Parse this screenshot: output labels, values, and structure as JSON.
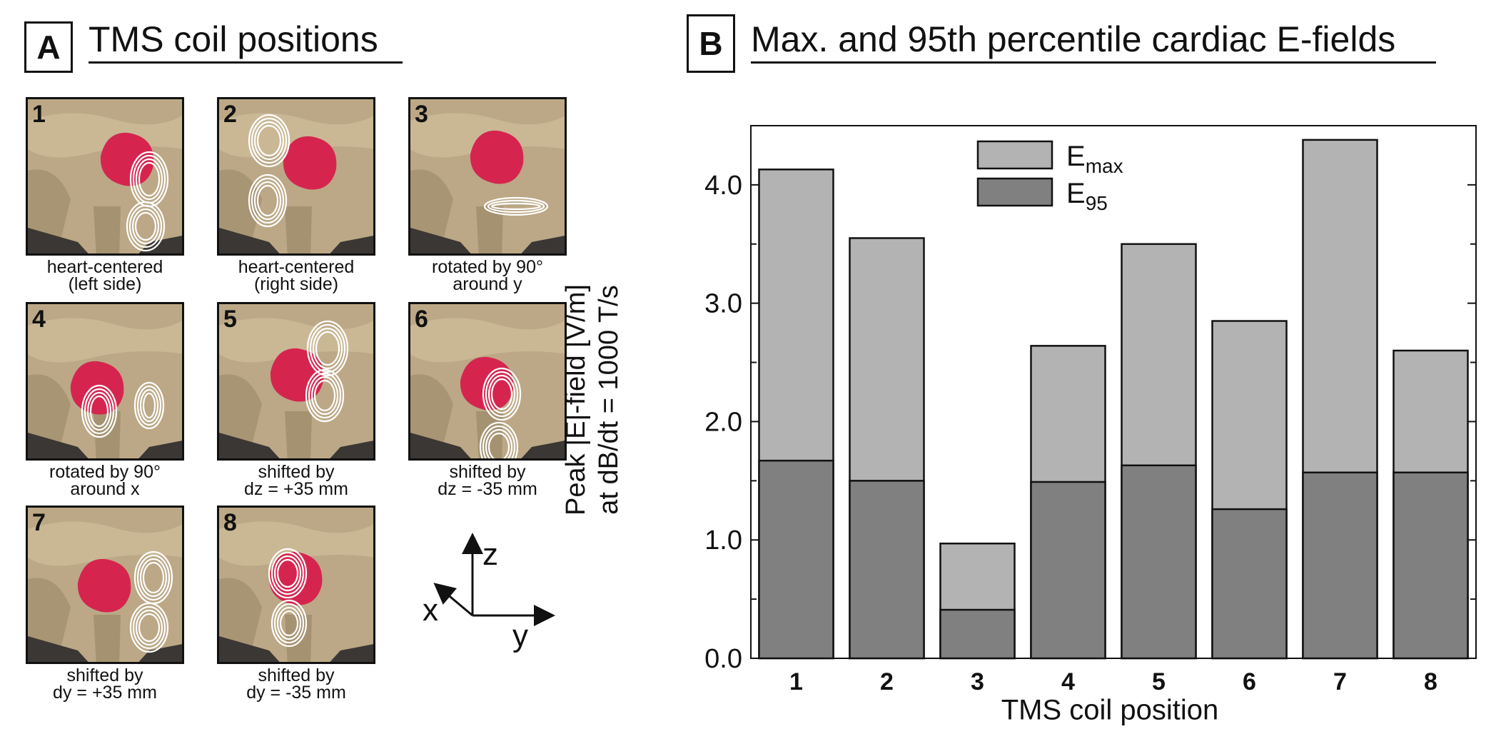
{
  "panel_a": {
    "letter": "A",
    "title": "TMS coil positions",
    "tiles": [
      {
        "num": "1",
        "line1": "heart-centered",
        "line2": "(left side)"
      },
      {
        "num": "2",
        "line1": "heart-centered",
        "line2": "(right side)"
      },
      {
        "num": "3",
        "line1": "rotated by 90°",
        "line2": "around y"
      },
      {
        "num": "4",
        "line1": "rotated by 90°",
        "line2": "around x"
      },
      {
        "num": "5",
        "line1": "shifted by",
        "line2": "dz = +35 mm"
      },
      {
        "num": "6",
        "line1": "shifted by",
        "line2": "dz = -35 mm"
      },
      {
        "num": "7",
        "line1": "shifted by",
        "line2": "dy = +35 mm"
      },
      {
        "num": "8",
        "line1": "shifted by",
        "line2": "dy = -35 mm"
      }
    ],
    "axes": {
      "z": "z",
      "x": "x",
      "y": "y"
    }
  },
  "panel_b": {
    "letter": "B",
    "title": "Max. and 95th percentile cardiac E-fields"
  },
  "colors": {
    "emax": "#b3b3b3",
    "e95": "#808080",
    "stroke": "#111111"
  },
  "chart_data": {
    "type": "bar",
    "title": "Max. and 95th percentile cardiac E-fields",
    "xlabel": "TMS coil position",
    "ylabel_line1": "Peak |E|-field [V/m]",
    "ylabel_line2": "at dB/dt = 1000 T/s",
    "categories": [
      "1",
      "2",
      "3",
      "4",
      "5",
      "6",
      "7",
      "8"
    ],
    "series": [
      {
        "name": "E",
        "subscript": "max",
        "values": [
          4.13,
          3.55,
          0.97,
          2.64,
          3.5,
          2.85,
          4.38,
          2.6
        ]
      },
      {
        "name": "E",
        "subscript": "95",
        "values": [
          1.67,
          1.5,
          0.41,
          1.49,
          1.63,
          1.26,
          1.57,
          1.57
        ]
      }
    ],
    "ylim": [
      0,
      4.5
    ],
    "yticks": [
      "0.0",
      "1.0",
      "2.0",
      "3.0",
      "4.0"
    ],
    "legend_position": "top-center",
    "overlay": true,
    "grid": false
  }
}
